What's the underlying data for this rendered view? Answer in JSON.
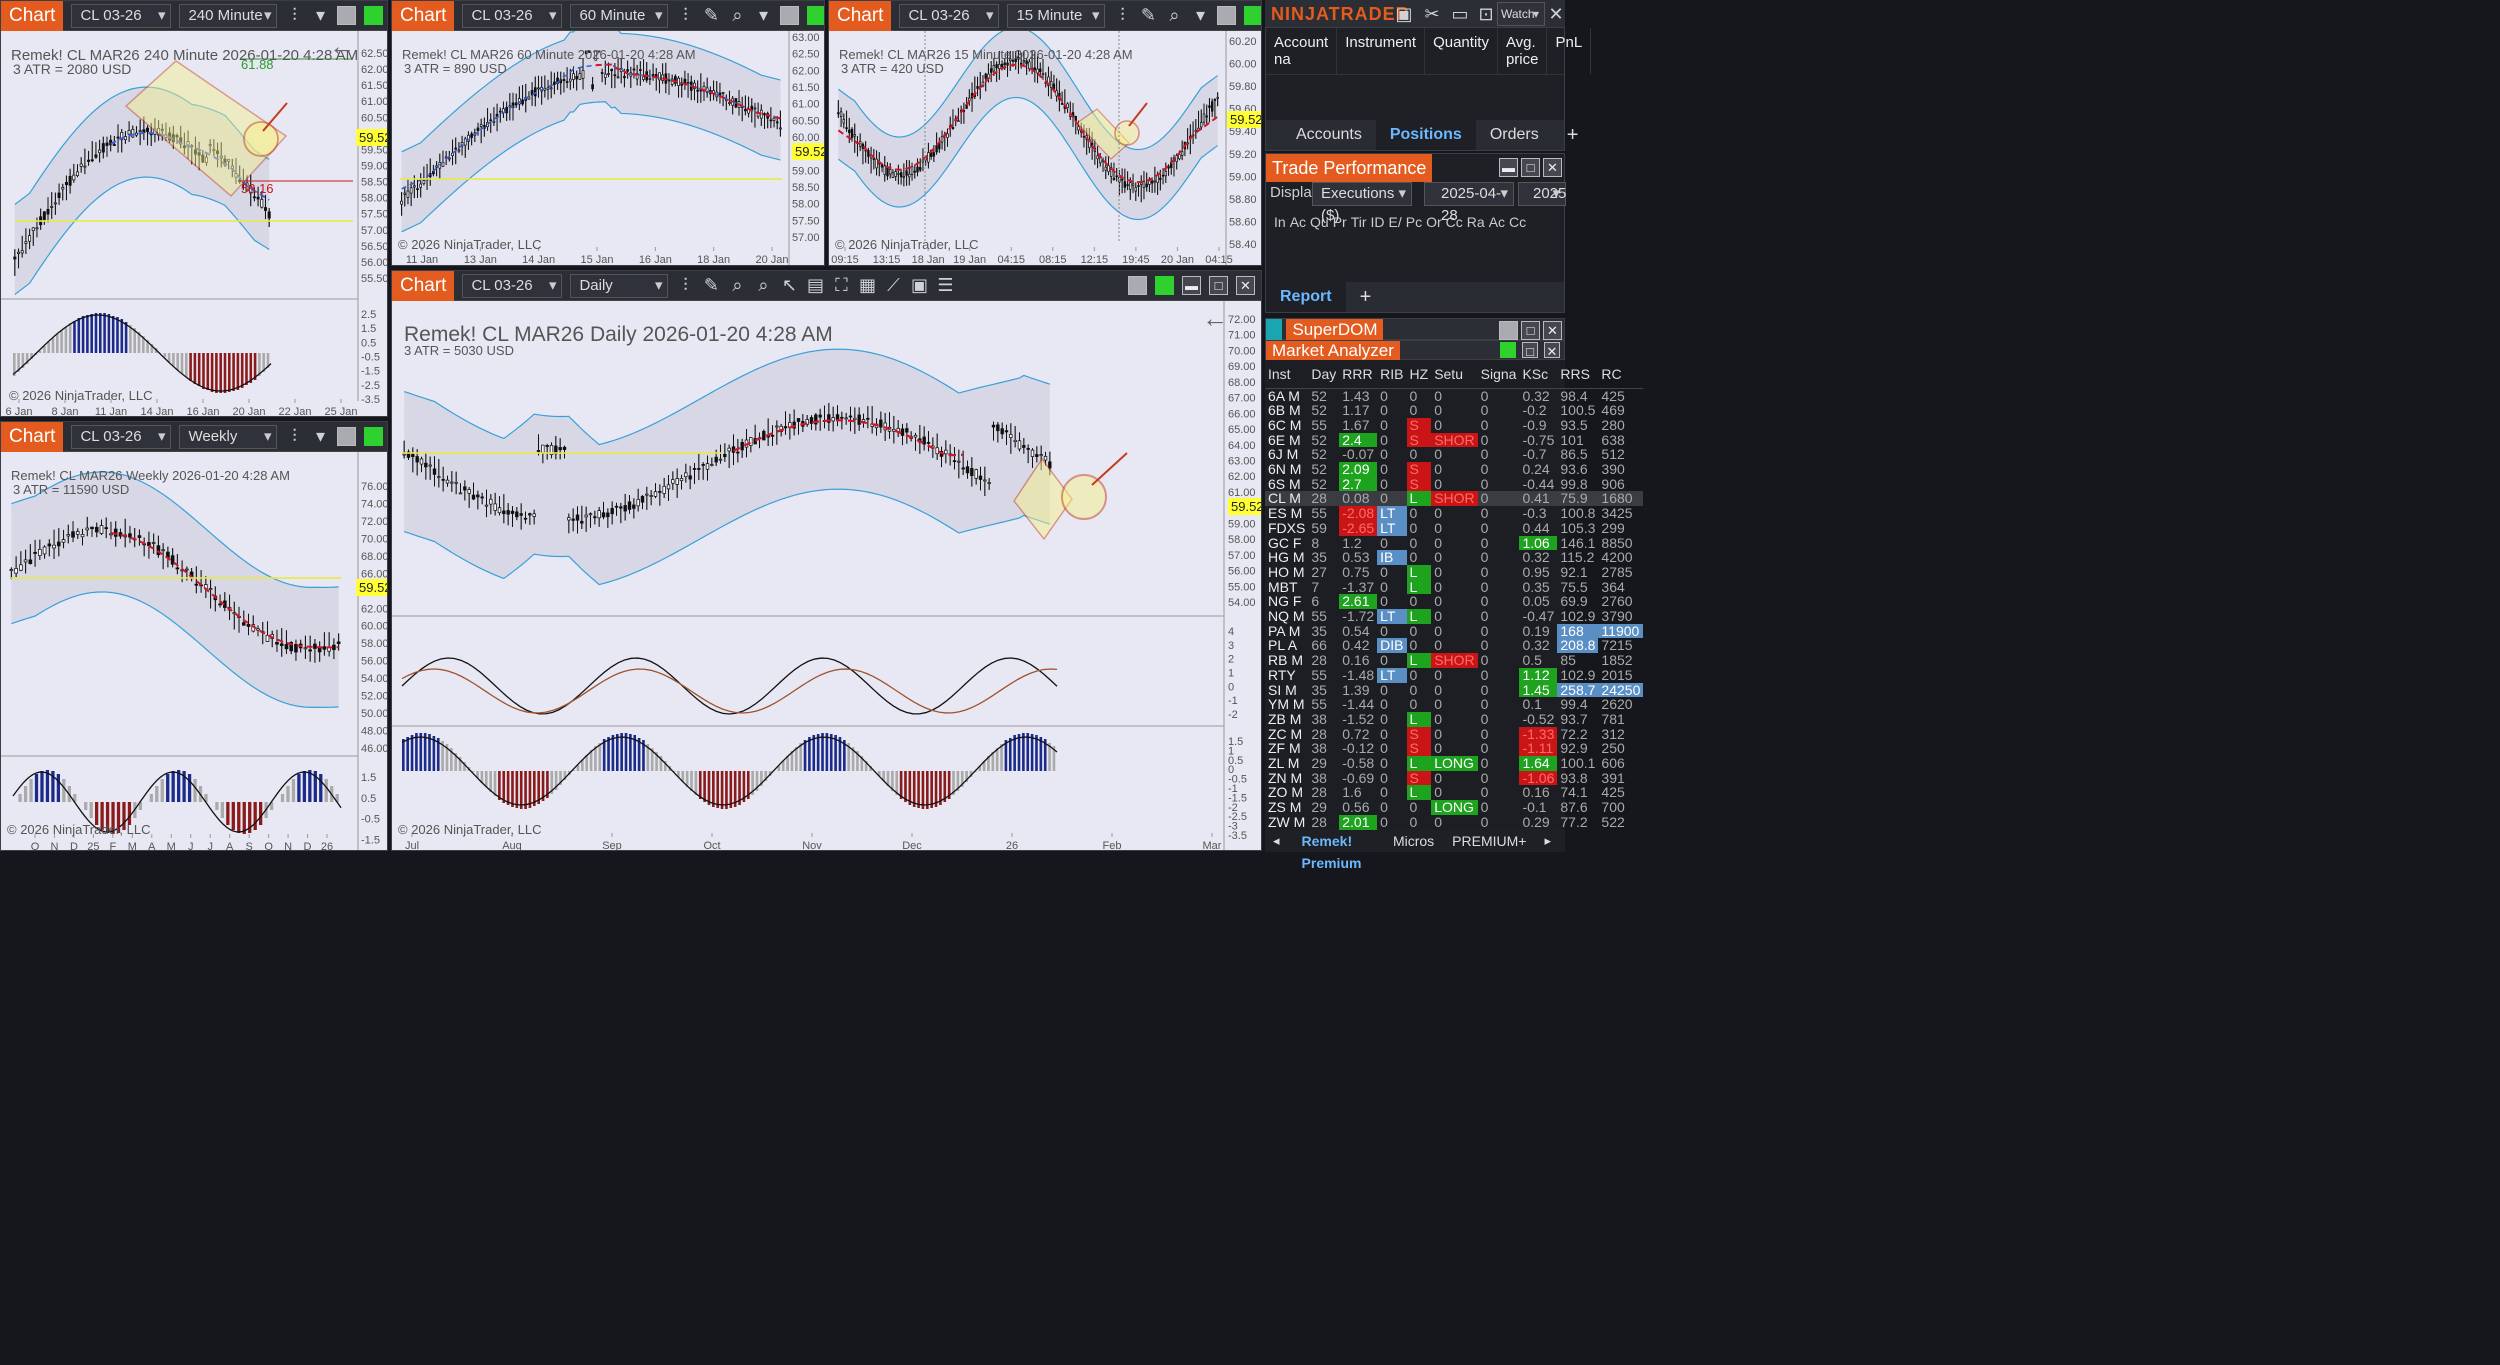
{
  "brand": "NINJATRADER",
  "brand_watch": "Watch",
  "windows": {
    "w1": {
      "tag": "Chart",
      "instrument": "CL 03-26",
      "interval": "240 Minute",
      "title": "Remek!  CL MAR26  240 Minute  2026-01-20 4:28 AM",
      "atr": "3 ATR = 2080 USD",
      "copyright": "© 2026 NinjaTrader, LLC",
      "price": "59.52",
      "lvl_hi": "61.88",
      "lvl_lo": "58.16",
      "y_ticks": [
        "62.50",
        "62.00",
        "61.50",
        "61.00",
        "60.50",
        "60.00",
        "59.50",
        "59.00",
        "58.50",
        "58.00",
        "57.50",
        "57.00",
        "56.50",
        "56.00",
        "55.50"
      ],
      "ind_ticks": [
        "2.5",
        "1.5",
        "0.5",
        "-0.5",
        "-1.5",
        "-2.5",
        "-3.5"
      ],
      "x_ticks": [
        "6 Jan",
        "8 Jan",
        "11 Jan",
        "14 Jan",
        "16 Jan",
        "20 Jan",
        "22 Jan",
        "25 Jan"
      ]
    },
    "w2": {
      "tag": "Chart",
      "instrument": "CL 03-26",
      "interval": "60 Minute",
      "title": "Remek!  CL MAR26  60 Minute  2026-01-20 4:28 AM",
      "atr": "3 ATR = 890 USD",
      "copyright": "© 2026 NinjaTrader, LLC",
      "price": "59.52",
      "y_ticks": [
        "63.00",
        "62.50",
        "62.00",
        "61.50",
        "61.00",
        "60.50",
        "60.00",
        "59.50",
        "59.00",
        "58.50",
        "58.00",
        "57.50",
        "57.00"
      ],
      "x_ticks": [
        "11 Jan",
        "13 Jan",
        "14 Jan",
        "15 Jan",
        "16 Jan",
        "18 Jan",
        "20 Jan"
      ]
    },
    "w3": {
      "tag": "Chart",
      "instrument": "CL 03-26",
      "interval": "15 Minute",
      "title": "Remek!  CL MAR26  15 Minute  2026-01-20 4:28 AM",
      "atr": "3 ATR = 420 USD",
      "copyright": "© 2026 NinjaTrader, LLC",
      "price": "59.52",
      "y_ticks": [
        "60.20",
        "60.00",
        "59.80",
        "59.60",
        "59.40",
        "59.20",
        "59.00",
        "58.80",
        "58.60",
        "58.40"
      ],
      "x_ticks": [
        "09:15",
        "13:15",
        "18 Jan",
        "19 Jan",
        "04:15",
        "08:15",
        "12:15",
        "19:45",
        "20 Jan",
        "04:15"
      ]
    },
    "w4": {
      "tag": "Chart",
      "instrument": "CL 03-26",
      "interval": "Weekly",
      "title": "Remek!  CL MAR26  Weekly  2026-01-20 4:28 AM",
      "atr": "3 ATR = 11590 USD",
      "copyright": "© 2026 NinjaTrader, LLC",
      "price": "59.52",
      "y_ticks": [
        "76.00",
        "74.00",
        "72.00",
        "70.00",
        "68.00",
        "66.00",
        "64.00",
        "62.00",
        "60.00",
        "58.00",
        "56.00",
        "54.00",
        "52.00",
        "50.00",
        "48.00",
        "46.00"
      ],
      "ind_ticks": [
        "1.5",
        "0.5",
        "-0.5",
        "-1.5",
        "-2.5"
      ],
      "x_ticks": [
        "O",
        "N",
        "D",
        "25",
        "F",
        "M",
        "A",
        "M",
        "J",
        "J",
        "A",
        "S",
        "O",
        "N",
        "D",
        "26"
      ]
    },
    "w5": {
      "tag": "Chart",
      "instrument": "CL 03-26",
      "interval": "Daily",
      "title": "Remek!  CL MAR26  Daily  2026-01-20 4:28 AM",
      "atr": "3 ATR = 5030 USD",
      "copyright": "© 2026 NinjaTrader, LLC",
      "price": "59.52",
      "y_ticks": [
        "72.00",
        "71.00",
        "70.00",
        "69.00",
        "68.00",
        "67.00",
        "66.00",
        "65.00",
        "64.00",
        "63.00",
        "62.00",
        "61.00",
        "60.00",
        "59.00",
        "58.00",
        "57.00",
        "56.00",
        "55.00",
        "54.00"
      ],
      "ind1_ticks": [
        "4",
        "3",
        "2",
        "1",
        "0",
        "-1",
        "-2"
      ],
      "ind2_ticks": [
        "1.5",
        "1",
        "0.5",
        "0",
        "-0.5",
        "-1",
        "-1.5",
        "-2",
        "-2.5",
        "-3",
        "-3.5"
      ],
      "x_ticks": [
        "Jul",
        "Aug",
        "Sep",
        "Oct",
        "Nov",
        "Dec",
        "26",
        "Feb",
        "Mar"
      ]
    }
  },
  "accounts": {
    "headers": [
      "Account na",
      "Instrument",
      "Quantity",
      "Avg. price",
      "PnL"
    ],
    "tabs": [
      "Accounts",
      "Positions",
      "Orders",
      "+"
    ]
  },
  "trade_perf": {
    "title": "Trade Performance",
    "display_label": "Display",
    "display_value": "Executions ($)",
    "date1": "2025-04-28",
    "date2": "2025",
    "headers": [
      "In",
      "Ac",
      "Qu",
      "Pr",
      "Tir",
      "ID",
      "E/",
      "Pc",
      "Or",
      "Cc",
      "Ra",
      "Ac",
      "Cc"
    ],
    "tabs": [
      "Report",
      "+"
    ]
  },
  "superdom": {
    "title": "SuperDOM"
  },
  "market_analyzer": {
    "title": "Market Analyzer",
    "headers": [
      "Inst",
      "Day",
      "RRR",
      "RIB",
      "HZ",
      "Setu",
      "Signa",
      "KSc",
      "RRS",
      "RC"
    ],
    "rows": [
      [
        "6A M",
        "52",
        "1.43",
        "0",
        "0",
        "0",
        "0",
        "0.32",
        "98.4",
        "425"
      ],
      [
        "6B M",
        "52",
        "1.17",
        "0",
        "0",
        "0",
        "0",
        "-0.2",
        "100.5",
        "469"
      ],
      [
        "6C M",
        "55",
        "1.67",
        "0",
        "S",
        "0",
        "0",
        "-0.9",
        "93.5",
        "280"
      ],
      [
        "6E M",
        "52",
        "2.4",
        "0",
        "S",
        "SHOR",
        "0",
        "-0.75",
        "101",
        "638"
      ],
      [
        "6J M",
        "52",
        "-0.07",
        "0",
        "0",
        "0",
        "0",
        "-0.7",
        "86.5",
        "512"
      ],
      [
        "6N M",
        "52",
        "2.09",
        "0",
        "S",
        "0",
        "0",
        "0.24",
        "93.6",
        "390"
      ],
      [
        "6S M",
        "52",
        "2.7",
        "0",
        "S",
        "0",
        "0",
        "-0.44",
        "99.8",
        "906"
      ],
      [
        "CL M",
        "28",
        "0.08",
        "0",
        "L",
        "SHOR",
        "0",
        "0.41",
        "75.9",
        "1680"
      ],
      [
        "ES M",
        "55",
        "-2.08",
        "LT",
        "0",
        "0",
        "0",
        "-0.3",
        "100.8",
        "3425"
      ],
      [
        "FDXS",
        "59",
        "-2.65",
        "LT",
        "0",
        "0",
        "0",
        "0.44",
        "105.3",
        "299"
      ],
      [
        "GC F",
        "8",
        "1.2",
        "0",
        "0",
        "0",
        "0",
        "1.06",
        "146.1",
        "8850"
      ],
      [
        "HG M",
        "35",
        "0.53",
        "IB",
        "0",
        "0",
        "0",
        "0.32",
        "115.2",
        "4200"
      ],
      [
        "HO M",
        "27",
        "0.75",
        "0",
        "L",
        "0",
        "0",
        "0.95",
        "92.1",
        "2785"
      ],
      [
        "MBT",
        "7",
        "-1.37",
        "0",
        "L",
        "0",
        "0",
        "0.35",
        "75.5",
        "364"
      ],
      [
        "NG F",
        "6",
        "2.61",
        "0",
        "0",
        "0",
        "0",
        "0.05",
        "69.9",
        "2760"
      ],
      [
        "NQ M",
        "55",
        "-1.72",
        "LT",
        "L",
        "0",
        "0",
        "-0.47",
        "102.9",
        "3790"
      ],
      [
        "PA M",
        "35",
        "0.54",
        "0",
        "0",
        "0",
        "0",
        "0.19",
        "168",
        "11900"
      ],
      [
        "PL A",
        "66",
        "0.42",
        "DIB",
        "0",
        "0",
        "0",
        "0.32",
        "208.8",
        "7215"
      ],
      [
        "RB M",
        "28",
        "0.16",
        "0",
        "L",
        "SHOR",
        "0",
        "0.5",
        "85",
        "1852"
      ],
      [
        "RTY",
        "55",
        "-1.48",
        "LT",
        "0",
        "0",
        "0",
        "1.12",
        "102.9",
        "2015"
      ],
      [
        "SI M",
        "35",
        "1.39",
        "0",
        "0",
        "0",
        "0",
        "1.45",
        "258.7",
        "24250"
      ],
      [
        "YM M",
        "55",
        "-1.44",
        "0",
        "0",
        "0",
        "0",
        "0.1",
        "99.4",
        "2620"
      ],
      [
        "ZB M",
        "38",
        "-1.52",
        "0",
        "L",
        "0",
        "0",
        "-0.52",
        "93.7",
        "781"
      ],
      [
        "ZC M",
        "28",
        "0.72",
        "0",
        "S",
        "0",
        "0",
        "-1.33",
        "72.2",
        "312"
      ],
      [
        "ZF M",
        "38",
        "-0.12",
        "0",
        "S",
        "0",
        "0",
        "-1.11",
        "92.9",
        "250"
      ],
      [
        "ZL M",
        "29",
        "-0.58",
        "0",
        "L",
        "LONG",
        "0",
        "1.64",
        "100.1",
        "606"
      ],
      [
        "ZN M",
        "38",
        "-0.69",
        "0",
        "S",
        "0",
        "0",
        "-1.06",
        "93.8",
        "391"
      ],
      [
        "ZO M",
        "28",
        "1.6",
        "0",
        "L",
        "0",
        "0",
        "0.16",
        "74.1",
        "425"
      ],
      [
        "ZS M",
        "29",
        "0.56",
        "0",
        "0",
        "LONG",
        "0",
        "-0.1",
        "87.6",
        "700"
      ],
      [
        "ZW M",
        "28",
        "2.01",
        "0",
        "0",
        "0",
        "0",
        "0.29",
        "77.2",
        "522"
      ]
    ],
    "tabs": [
      "Remek! Premium",
      "Micros",
      "PREMIUM+"
    ]
  },
  "colors": {
    "orange": "#e35b1f",
    "green": "#1da31d",
    "red": "#c91515",
    "blue": "#5a8fc6",
    "bg": "#e8e8f4",
    "yellow": "#ffff33"
  }
}
